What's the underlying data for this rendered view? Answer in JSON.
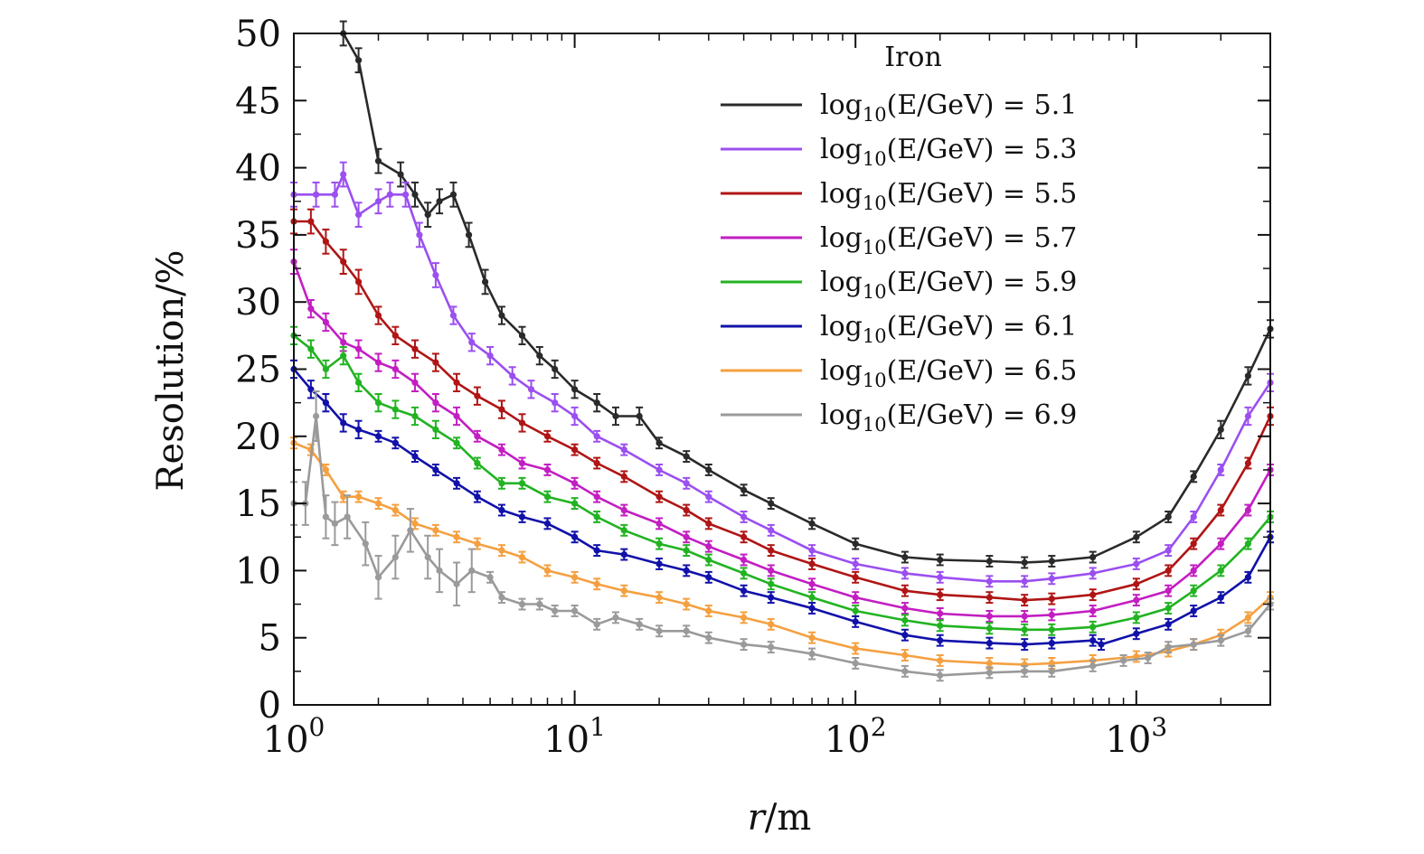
{
  "chart_data": {
    "type": "line",
    "title": "",
    "xlabel": "r/m",
    "ylabel": "Resolution/%",
    "xscale": "log",
    "xlim": [
      1,
      3000
    ],
    "ylim": [
      0,
      50
    ],
    "grid": false,
    "legend": {
      "title": "Iron",
      "placement": "top-right"
    },
    "x_ticks": [
      {
        "base": "10",
        "exp": "0",
        "value": 1
      },
      {
        "base": "10",
        "exp": "1",
        "value": 10
      },
      {
        "base": "10",
        "exp": "2",
        "value": 100
      },
      {
        "base": "10",
        "exp": "3",
        "value": 1000
      }
    ],
    "y_ticks": [
      "0",
      "5",
      "10",
      "15",
      "20",
      "25",
      "30",
      "35",
      "40",
      "45",
      "50"
    ],
    "series": [
      {
        "name": "log10(E/GeV) = 5.1",
        "label_prefix": "log",
        "label_sub": "10",
        "label_suffix": "(E/GeV) = 5.1",
        "color": "#2a2a2a",
        "x": [
          1.5,
          1.7,
          2.0,
          2.4,
          2.7,
          3.0,
          3.3,
          3.7,
          4.2,
          4.8,
          5.5,
          6.5,
          7.5,
          8.5,
          10,
          12,
          14,
          17,
          20,
          25,
          30,
          40,
          50,
          70,
          100,
          150,
          200,
          300,
          400,
          500,
          700,
          1000,
          1300,
          1600,
          2000,
          2500,
          3000
        ],
        "y": [
          50,
          48,
          40.5,
          39.5,
          38,
          36.5,
          37.5,
          38,
          35,
          31.5,
          29,
          27.5,
          26,
          25,
          23.5,
          22.5,
          21.5,
          21.5,
          19.5,
          18.5,
          17.5,
          16,
          15,
          13.5,
          12,
          11,
          10.8,
          10.7,
          10.6,
          10.7,
          11,
          12.5,
          14,
          17,
          20.5,
          24.5,
          28
        ]
      },
      {
        "name": "log10(E/GeV) = 5.3",
        "label_prefix": "log",
        "label_sub": "10",
        "label_suffix": "(E/GeV) = 5.3",
        "color": "#9b4ff0",
        "x": [
          1.0,
          1.2,
          1.4,
          1.5,
          1.7,
          2.0,
          2.2,
          2.5,
          2.8,
          3.2,
          3.7,
          4.3,
          5.0,
          6.0,
          7.0,
          8.5,
          10,
          12,
          15,
          20,
          25,
          30,
          40,
          50,
          70,
          100,
          150,
          200,
          300,
          400,
          500,
          700,
          1000,
          1300,
          1600,
          2000,
          2500,
          3000
        ],
        "y": [
          38,
          38,
          38,
          39.5,
          36.5,
          37.5,
          38,
          38,
          35,
          32,
          29,
          27,
          26,
          24.5,
          23.5,
          22.5,
          21.5,
          20,
          19,
          17.5,
          16.5,
          15.5,
          14,
          13,
          11.5,
          10.5,
          9.8,
          9.5,
          9.2,
          9.2,
          9.4,
          9.8,
          10.5,
          11.5,
          14,
          17.5,
          21.5,
          24
        ]
      },
      {
        "name": "log10(E/GeV) = 5.5",
        "label_prefix": "log",
        "label_sub": "10",
        "label_suffix": "(E/GeV) = 5.5",
        "color": "#b01515",
        "x": [
          1.0,
          1.15,
          1.3,
          1.5,
          1.7,
          2.0,
          2.3,
          2.7,
          3.2,
          3.8,
          4.5,
          5.5,
          6.5,
          8,
          10,
          12,
          15,
          20,
          25,
          30,
          40,
          50,
          70,
          100,
          150,
          200,
          300,
          400,
          500,
          700,
          1000,
          1300,
          1600,
          2000,
          2500,
          3000
        ],
        "y": [
          36,
          36,
          34.5,
          33,
          31.5,
          29,
          27.5,
          26.5,
          25.5,
          24,
          23,
          22,
          21,
          20,
          19,
          18,
          17,
          15.5,
          14.5,
          13.5,
          12.5,
          11.5,
          10.5,
          9.5,
          8.5,
          8.2,
          8.0,
          7.8,
          7.9,
          8.2,
          9,
          10,
          12,
          14.5,
          18,
          21.5
        ]
      },
      {
        "name": "log10(E/GeV) = 5.7",
        "label_prefix": "log",
        "label_sub": "10",
        "label_suffix": "(E/GeV) = 5.7",
        "color": "#c21ec2",
        "x": [
          1.0,
          1.15,
          1.3,
          1.5,
          1.7,
          2.0,
          2.3,
          2.7,
          3.2,
          3.8,
          4.5,
          5.5,
          6.5,
          8,
          10,
          12,
          15,
          20,
          25,
          30,
          40,
          50,
          70,
          100,
          150,
          200,
          300,
          400,
          500,
          700,
          1000,
          1300,
          1600,
          2000,
          2500,
          3000
        ],
        "y": [
          33,
          29.5,
          28.5,
          27,
          26.5,
          25.5,
          25,
          24,
          22.5,
          21.5,
          20,
          19,
          18,
          17.5,
          16.5,
          15.5,
          14.5,
          13.5,
          12.5,
          11.8,
          10.8,
          10,
          9,
          8,
          7.2,
          6.8,
          6.6,
          6.6,
          6.7,
          7,
          7.8,
          8.5,
          10,
          12,
          14.5,
          17.5
        ]
      },
      {
        "name": "log10(E/GeV) = 5.9",
        "label_prefix": "log",
        "label_sub": "10",
        "label_suffix": "(E/GeV) = 5.9",
        "color": "#22b322",
        "x": [
          1.0,
          1.15,
          1.3,
          1.5,
          1.7,
          2.0,
          2.3,
          2.7,
          3.2,
          3.8,
          4.5,
          5.5,
          6.5,
          8,
          10,
          12,
          15,
          20,
          25,
          30,
          40,
          50,
          70,
          100,
          150,
          200,
          300,
          400,
          500,
          700,
          1000,
          1300,
          1600,
          2000,
          2500,
          3000
        ],
        "y": [
          27.5,
          26.5,
          25,
          26,
          24,
          22.5,
          22,
          21.5,
          20.5,
          19.5,
          18,
          16.5,
          16.5,
          15.5,
          15,
          14,
          13,
          12,
          11.5,
          10.8,
          9.8,
          9,
          8,
          7,
          6.3,
          5.9,
          5.7,
          5.6,
          5.6,
          5.8,
          6.5,
          7.2,
          8.5,
          10,
          12,
          14
        ]
      },
      {
        "name": "log10(E/GeV) = 6.1",
        "label_prefix": "log",
        "label_sub": "10",
        "label_suffix": "(E/GeV) = 6.1",
        "color": "#1111aa",
        "x": [
          1.0,
          1.15,
          1.3,
          1.5,
          1.7,
          2.0,
          2.3,
          2.7,
          3.2,
          3.8,
          4.5,
          5.5,
          6.5,
          8,
          10,
          12,
          15,
          20,
          25,
          30,
          40,
          50,
          70,
          100,
          150,
          200,
          300,
          400,
          500,
          700,
          750,
          1000,
          1300,
          1600,
          2000,
          2500,
          3000
        ],
        "y": [
          25,
          23.5,
          22.5,
          21,
          20.5,
          20,
          19.5,
          18.5,
          17.5,
          16.5,
          15.5,
          14.5,
          14,
          13.5,
          12.5,
          11.5,
          11.2,
          10.5,
          10,
          9.5,
          8.5,
          8,
          7.2,
          6.2,
          5.2,
          4.8,
          4.6,
          4.5,
          4.6,
          4.8,
          4.5,
          5.3,
          6,
          7,
          8,
          9.5,
          12.5
        ]
      },
      {
        "name": "log10(E/GeV) = 6.5",
        "label_prefix": "log",
        "label_sub": "10",
        "label_suffix": "(E/GeV) = 6.5",
        "color": "#f5a040",
        "x": [
          1.0,
          1.15,
          1.3,
          1.5,
          1.7,
          2.0,
          2.3,
          2.7,
          3.2,
          3.8,
          4.5,
          5.5,
          6.5,
          8,
          10,
          12,
          15,
          20,
          25,
          30,
          40,
          50,
          70,
          100,
          150,
          200,
          300,
          400,
          500,
          700,
          1000,
          1300,
          1600,
          2000,
          2500,
          3000
        ],
        "y": [
          19.5,
          19,
          17.5,
          15.5,
          15.5,
          15,
          14.5,
          13.5,
          13,
          12.5,
          12,
          11.5,
          11,
          10,
          9.5,
          9,
          8.5,
          8,
          7.5,
          7,
          6.5,
          6,
          5,
          4.2,
          3.7,
          3.3,
          3.1,
          3,
          3.1,
          3.3,
          3.6,
          4,
          4.5,
          5.2,
          6.5,
          8
        ]
      },
      {
        "name": "log10(E/GeV) = 6.9",
        "label_prefix": "log",
        "label_sub": "10",
        "label_suffix": "(E/GeV) = 6.9",
        "color": "#9a9a9a",
        "x": [
          1.0,
          1.1,
          1.2,
          1.3,
          1.4,
          1.55,
          1.8,
          2.0,
          2.3,
          2.6,
          3.0,
          3.3,
          3.8,
          4.3,
          5.0,
          5.5,
          6.5,
          7.5,
          8.5,
          10,
          12,
          14,
          17,
          20,
          25,
          30,
          40,
          50,
          70,
          100,
          150,
          200,
          300,
          400,
          500,
          700,
          900,
          1100,
          1300,
          1600,
          2000,
          2500,
          3000
        ],
        "y": [
          15,
          15,
          21.5,
          14,
          13.5,
          14,
          12,
          9.5,
          11,
          13,
          11,
          10,
          9,
          10,
          9.5,
          8,
          7.5,
          7.5,
          7,
          7,
          6,
          6.5,
          6,
          5.5,
          5.5,
          5,
          4.5,
          4.3,
          3.8,
          3.1,
          2.5,
          2.2,
          2.4,
          2.5,
          2.5,
          2.9,
          3.3,
          3.5,
          4.3,
          4.5,
          4.8,
          5.5,
          7.5
        ]
      }
    ]
  }
}
